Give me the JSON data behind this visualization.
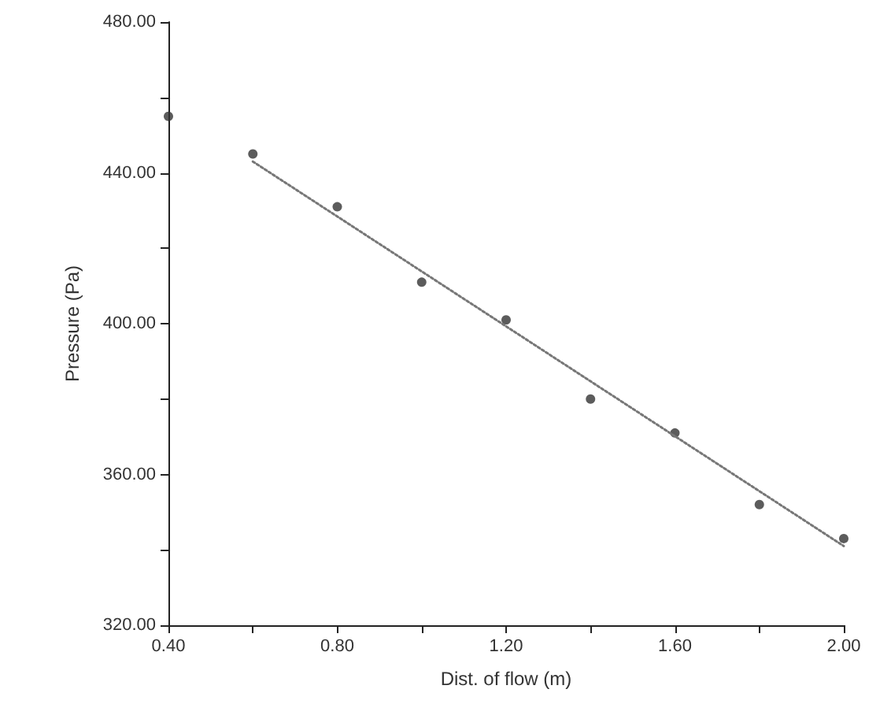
{
  "chart_data": {
    "type": "scatter",
    "xlabel": "Dist. of flow (m)",
    "ylabel": "Pressure (Pa)",
    "xlim": [
      0.4,
      2.0
    ],
    "ylim": [
      320,
      480
    ],
    "xticks": [
      {
        "value": 0.4,
        "label": "0.40"
      },
      {
        "value": 0.6,
        "label": null
      },
      {
        "value": 0.8,
        "label": "0.80"
      },
      {
        "value": 1.0,
        "label": null
      },
      {
        "value": 1.2,
        "label": "1.20"
      },
      {
        "value": 1.4,
        "label": null
      },
      {
        "value": 1.6,
        "label": "1.60"
      },
      {
        "value": 1.8,
        "label": null
      },
      {
        "value": 2.0,
        "label": "2.00"
      }
    ],
    "yticks": [
      {
        "value": 320,
        "label": "320.00"
      },
      {
        "value": 340,
        "label": null
      },
      {
        "value": 360,
        "label": "360.00"
      },
      {
        "value": 380,
        "label": null
      },
      {
        "value": 400,
        "label": "400.00"
      },
      {
        "value": 420,
        "label": null
      },
      {
        "value": 440,
        "label": "440.00"
      },
      {
        "value": 460,
        "label": null
      },
      {
        "value": 480,
        "label": "480.00"
      }
    ],
    "grid": false,
    "marker": "circle",
    "series": [
      {
        "color": "#333333",
        "x": [
          0.4,
          0.6,
          0.8,
          1.0,
          1.2,
          1.4,
          1.6,
          1.8,
          2.0
        ],
        "values": [
          455,
          445,
          431,
          411,
          401,
          380,
          371,
          352,
          343
        ]
      },
      {
        "type": "line",
        "color": "#777777",
        "line_style": "dotted",
        "marker": "none",
        "x": [
          0.6,
          2.0
        ],
        "values": [
          443,
          341
        ]
      }
    ]
  }
}
